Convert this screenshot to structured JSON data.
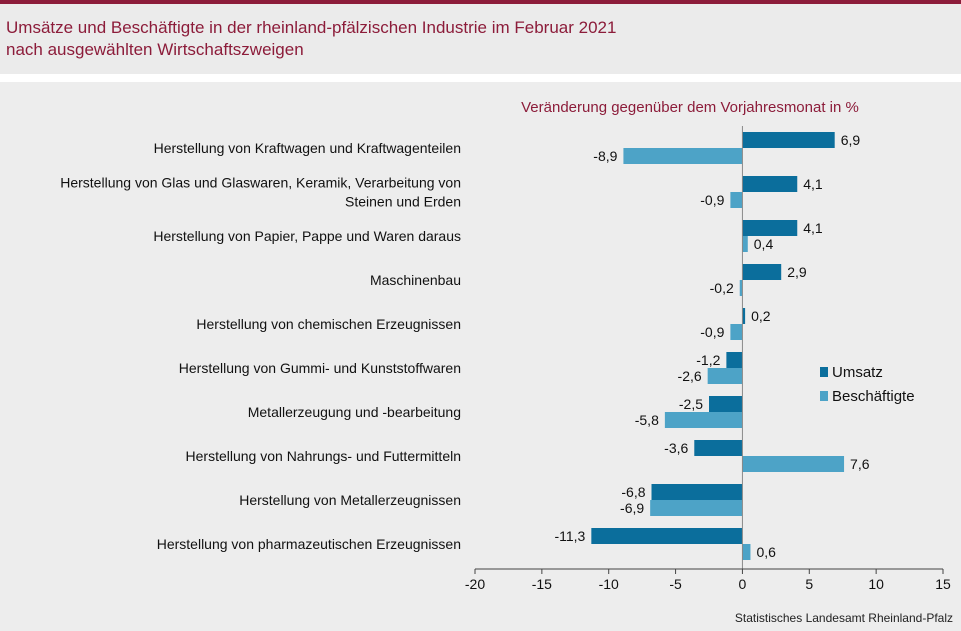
{
  "header": {
    "title_line1": "Umsätze und Beschäftigte in der rheinland-pfälzischen Industrie im Februar 2021",
    "title_line2": "nach ausgewählten Wirtschaftszweigen"
  },
  "source": "Statistisches Landesamt Rheinland-Pfalz",
  "colors": {
    "umsatz": "#0b6e9c",
    "beschaeftigte": "#4da3c7",
    "accent": "#8c1c3a"
  },
  "chart_data": {
    "type": "bar",
    "orientation": "horizontal",
    "subtitle": "Veränderung gegenüber dem Vorjahresmonat in %",
    "categories": [
      [
        "Herstellung von Kraftwagen und Kraftwagenteilen"
      ],
      [
        "Herstellung von Glas und Glaswaren, Keramik, Verarbeitung von",
        "Steinen und Erden"
      ],
      [
        "Herstellung von Papier, Pappe und Waren daraus"
      ],
      [
        "Maschinenbau"
      ],
      [
        "Herstellung von chemischen Erzeugnissen"
      ],
      [
        "Herstellung von Gummi- und Kunststoffwaren"
      ],
      [
        "Metallerzeugung und -bearbeitung"
      ],
      [
        "Herstellung von Nahrungs- und Futtermitteln"
      ],
      [
        "Herstellung von Metallerzeugnissen"
      ],
      [
        "Herstellung von pharmazeutischen Erzeugnissen"
      ]
    ],
    "series": [
      {
        "name": "Umsatz",
        "values": [
          6.9,
          4.1,
          4.1,
          2.9,
          0.2,
          -1.2,
          -2.5,
          -3.6,
          -6.8,
          -11.3
        ],
        "labels": [
          "6,9",
          "4,1",
          "4,1",
          "2,9",
          "0,2",
          "-1,2",
          "-2,5",
          "-3,6",
          "-6,8",
          "-11,3"
        ]
      },
      {
        "name": "Beschäftigte",
        "values": [
          -8.9,
          -0.9,
          0.4,
          -0.2,
          -0.9,
          -2.6,
          -5.8,
          7.6,
          -6.9,
          0.6
        ],
        "labels": [
          "-8,9",
          "-0,9",
          "0,4",
          "-0,2",
          "-0,9",
          "-2,6",
          "-5,8",
          "7,6",
          "-6,9",
          "0,6"
        ]
      }
    ],
    "xlim": [
      -20,
      15
    ],
    "xticks": [
      -20,
      -15,
      -10,
      -5,
      0,
      5,
      10,
      15
    ],
    "xtick_labels": [
      "-20",
      "-15",
      "-10",
      "-5",
      "0",
      "5",
      "10",
      "15"
    ],
    "grid": false,
    "legend": "right"
  }
}
